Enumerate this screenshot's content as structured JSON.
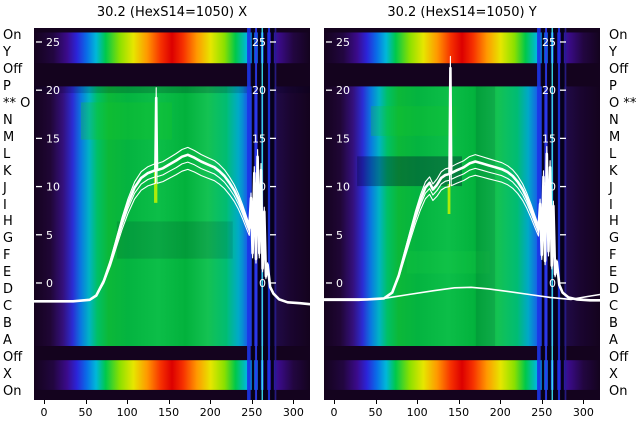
{
  "palette": {
    "dark": "#14031e",
    "rainbow": [
      [
        "0%",
        "#14031e"
      ],
      [
        "7%",
        "#220640"
      ],
      [
        "12%",
        "#3b0b8c"
      ],
      [
        "15.5%",
        "#2b24d8"
      ],
      [
        "19%",
        "#0a6ce8"
      ],
      [
        "22.5%",
        "#00b8d8"
      ],
      [
        "26%",
        "#00c84a"
      ],
      [
        "31%",
        "#8ae000"
      ],
      [
        "36%",
        "#e6e600"
      ],
      [
        "41%",
        "#ff9800"
      ],
      [
        "46%",
        "#f63000"
      ],
      [
        "50%",
        "#dc0000"
      ],
      [
        "54%",
        "#f63000"
      ],
      [
        "59%",
        "#ff9800"
      ],
      [
        "64%",
        "#e6e600"
      ],
      [
        "69%",
        "#8ae000"
      ],
      [
        "73%",
        "#00c84a"
      ],
      [
        "77%",
        "#00b8d8"
      ],
      [
        "80.5%",
        "#0a6ce8"
      ],
      [
        "84%",
        "#2b24d8"
      ],
      [
        "88.5%",
        "#3b0b8c"
      ],
      [
        "94%",
        "#220640"
      ],
      [
        "100%",
        "#14031e"
      ]
    ],
    "body": [
      [
        "0%",
        "#14031e"
      ],
      [
        "6%",
        "#200636"
      ],
      [
        "10.5%",
        "#34107c"
      ],
      [
        "14%",
        "#2b2cd4"
      ],
      [
        "17%",
        "#0a78e0"
      ],
      [
        "20%",
        "#00b4c4"
      ],
      [
        "23%",
        "#00c064"
      ],
      [
        "27%",
        "#0cb838"
      ],
      [
        "34%",
        "#04b440"
      ],
      [
        "45%",
        "#0cbe48"
      ],
      [
        "55%",
        "#02b23c"
      ],
      [
        "63%",
        "#14c252"
      ],
      [
        "70%",
        "#00bc74"
      ],
      [
        "74%",
        "#00a8c8"
      ],
      [
        "77%",
        "#1468e4"
      ],
      [
        "79.5%",
        "#2b2cd4"
      ],
      [
        "82%",
        "#1a1070"
      ],
      [
        "85%",
        "#0a0634"
      ],
      [
        "88%",
        "#200a46"
      ],
      [
        "93%",
        "#1a0530"
      ],
      [
        "100%",
        "#14031e"
      ]
    ],
    "curve": "#ffffff",
    "tick_text": "#ffffff"
  },
  "row_labels": [
    "On",
    "Y",
    "Off",
    "P",
    "O",
    "N",
    "M",
    "L",
    "K",
    "J",
    "I",
    "H",
    "G",
    "F",
    "E",
    "D",
    "C",
    "B",
    "A",
    "Off",
    "X",
    "On"
  ],
  "starred_row": 4,
  "star_text": "**",
  "y_tick_labels": [
    "25",
    "20",
    "15",
    "10",
    "5",
    "0"
  ],
  "y_tick_values": [
    25,
    20,
    15,
    10,
    5,
    0
  ],
  "x_tick_labels": [
    "0",
    "50",
    "100",
    "150",
    "200",
    "250",
    "300"
  ],
  "x_tick_values": [
    0,
    50,
    100,
    150,
    200,
    250,
    300
  ],
  "chart_data": [
    {
      "type": "heatmap+line",
      "title": "30.2 (HexS14=1050) X",
      "x_range": [
        -12,
        320
      ],
      "y_range": [
        -12.14,
        26.45
      ],
      "x_ticks": [
        0,
        50,
        100,
        150,
        200,
        250,
        300
      ],
      "y_ticks": [
        25,
        20,
        15,
        10,
        5,
        0
      ],
      "row_labels": [
        "On",
        "Y",
        "Off",
        "P",
        "O",
        "N",
        "M",
        "L",
        "K",
        "J",
        "I",
        "H",
        "G",
        "F",
        "E",
        "D",
        "C",
        "B",
        "A",
        "Off",
        "X",
        "On"
      ],
      "baseline": -1.9,
      "bands": [
        {
          "from": 0.0,
          "to": 0.012,
          "style": "dark"
        },
        {
          "from": 0.012,
          "to": 0.095,
          "style": "rainbow"
        },
        {
          "from": 0.095,
          "to": 0.157,
          "style": "dark"
        },
        {
          "from": 0.157,
          "to": 0.855,
          "style": "body"
        },
        {
          "from": 0.855,
          "to": 0.893,
          "style": "dark"
        },
        {
          "from": 0.893,
          "to": 0.973,
          "style": "rainbow"
        },
        {
          "from": 0.973,
          "to": 1.0,
          "style": "dark"
        }
      ],
      "overlays": [
        {
          "x0": 0.17,
          "x1": 0.5,
          "y0": 0.2,
          "y1": 0.3,
          "color": "#18c828",
          "opacity": 0.3
        },
        {
          "x0": 0.3,
          "x1": 0.72,
          "y0": 0.52,
          "y1": 0.62,
          "color": "#000028",
          "opacity": 0.12
        },
        {
          "x0": 0.435,
          "x1": 0.447,
          "y0": 0.36,
          "y1": 0.47,
          "color": "#c8f400",
          "opacity": 0.85
        },
        {
          "x0": 0.0,
          "x1": 1.0,
          "y0": 0.157,
          "y1": 0.175,
          "color": "#000020",
          "opacity": 0.18
        },
        {
          "x0": 0.7,
          "x1": 0.76,
          "y0": 0.157,
          "y1": 0.855,
          "color": "#00c8c0",
          "opacity": 0.1
        }
      ],
      "stripes": [
        {
          "x": 0.772,
          "w": 0.013,
          "color": "#1b35e8",
          "opacity": 0.9
        },
        {
          "x": 0.789,
          "w": 0.009,
          "color": "#05021a",
          "opacity": 1
        },
        {
          "x": 0.801,
          "w": 0.007,
          "color": "#2a3cf0",
          "opacity": 0.9
        },
        {
          "x": 0.811,
          "w": 0.011,
          "color": "#05021a",
          "opacity": 1
        },
        {
          "x": 0.8245,
          "w": 0.005,
          "color": "#39e8f2",
          "opacity": 0.95
        },
        {
          "x": 0.832,
          "w": 0.013,
          "color": "#05021a",
          "opacity": 1
        },
        {
          "x": 0.848,
          "w": 0.007,
          "color": "#1b35e8",
          "opacity": 0.9
        },
        {
          "x": 0.858,
          "w": 0.011,
          "color": "#05021a",
          "opacity": 1
        },
        {
          "x": 0.872,
          "w": 0.006,
          "color": "#261e8c",
          "opacity": 0.9
        }
      ],
      "series": [
        {
          "name": "profile-bundle",
          "width": 2.6,
          "bundle": [
            1,
            0.95,
            1.05,
            0.9
          ],
          "points": [
            [
              -12,
              -1.9
            ],
            [
              35,
              -1.9
            ],
            [
              55,
              -1.75
            ],
            [
              63,
              -1.3
            ],
            [
              72,
              0.2
            ],
            [
              80,
              2.2
            ],
            [
              87,
              4.3
            ],
            [
              94,
              6.4
            ],
            [
              101,
              8.2
            ],
            [
              109,
              9.9
            ],
            [
              117,
              10.9
            ],
            [
              125,
              11.4
            ],
            [
              131,
              11.6
            ],
            [
              134,
              11.7
            ],
            [
              135,
              19.2
            ],
            [
              136,
              11.7
            ],
            [
              143,
              11.9
            ],
            [
              151,
              12.3
            ],
            [
              159,
              12.7
            ],
            [
              166,
              13.1
            ],
            [
              173,
              13.3
            ],
            [
              181,
              13.0
            ],
            [
              189,
              12.6
            ],
            [
              197,
              12.3
            ],
            [
              205,
              12.0
            ],
            [
              211,
              11.6
            ],
            [
              217,
              11.1
            ],
            [
              223,
              10.4
            ],
            [
              229,
              9.6
            ],
            [
              234,
              8.7
            ],
            [
              239,
              7.6
            ],
            [
              244,
              6.4
            ],
            [
              247,
              5.7
            ],
            [
              249,
              8.8
            ],
            [
              251,
              3.1
            ],
            [
              253,
              11.4
            ],
            [
              255,
              2.5
            ],
            [
              257,
              13.1
            ],
            [
              259,
              3.1
            ],
            [
              261,
              11.7
            ],
            [
              263,
              1.5
            ],
            [
              265,
              7.4
            ],
            [
              267,
              0.7
            ],
            [
              269,
              1.9
            ],
            [
              272,
              -0.4
            ],
            [
              276,
              -1.1
            ],
            [
              283,
              -1.7
            ],
            [
              293,
              -2.0
            ],
            [
              308,
              -2.1
            ],
            [
              320,
              -2.2
            ]
          ]
        }
      ]
    },
    {
      "type": "heatmap+line",
      "title": "30.2 (HexS14=1050) Y",
      "x_range": [
        -12,
        320
      ],
      "y_range": [
        -12.14,
        26.45
      ],
      "x_ticks": [
        0,
        50,
        100,
        150,
        200,
        250,
        300
      ],
      "y_ticks": [
        25,
        20,
        15,
        10,
        5,
        0
      ],
      "row_labels": [
        "On",
        "Y",
        "Off",
        "P",
        "O",
        "N",
        "M",
        "L",
        "K",
        "J",
        "I",
        "H",
        "G",
        "F",
        "E",
        "D",
        "C",
        "B",
        "A",
        "Off",
        "X",
        "On"
      ],
      "baseline": -1.7,
      "bands": [
        {
          "from": 0.0,
          "to": 0.012,
          "style": "dark"
        },
        {
          "from": 0.012,
          "to": 0.095,
          "style": "rainbow"
        },
        {
          "from": 0.095,
          "to": 0.157,
          "style": "dark"
        },
        {
          "from": 0.157,
          "to": 0.855,
          "style": "body"
        },
        {
          "from": 0.855,
          "to": 0.893,
          "style": "dark"
        },
        {
          "from": 0.893,
          "to": 0.973,
          "style": "rainbow"
        },
        {
          "from": 0.973,
          "to": 1.0,
          "style": "dark"
        }
      ],
      "overlays": [
        {
          "x0": 0.12,
          "x1": 0.5,
          "y0": 0.345,
          "y1": 0.425,
          "color": "#000030",
          "opacity": 0.32
        },
        {
          "x0": 0.17,
          "x1": 0.48,
          "y0": 0.21,
          "y1": 0.29,
          "color": "#18c828",
          "opacity": 0.25
        },
        {
          "x0": 0.448,
          "x1": 0.458,
          "y0": 0.42,
          "y1": 0.5,
          "color": "#c8f400",
          "opacity": 0.85
        },
        {
          "x0": 0.3,
          "x1": 0.6,
          "y0": 0.6,
          "y1": 0.66,
          "color": "#20d040",
          "opacity": 0.18
        },
        {
          "x0": 0.55,
          "x1": 0.62,
          "y0": 0.157,
          "y1": 0.855,
          "color": "#000020",
          "opacity": 0.1
        }
      ],
      "stripes": [
        {
          "x": 0.772,
          "w": 0.013,
          "color": "#1b35e8",
          "opacity": 0.9
        },
        {
          "x": 0.789,
          "w": 0.009,
          "color": "#05021a",
          "opacity": 1
        },
        {
          "x": 0.801,
          "w": 0.007,
          "color": "#2a3cf0",
          "opacity": 0.9
        },
        {
          "x": 0.811,
          "w": 0.011,
          "color": "#05021a",
          "opacity": 1
        },
        {
          "x": 0.8245,
          "w": 0.005,
          "color": "#39e8f2",
          "opacity": 0.95
        },
        {
          "x": 0.832,
          "w": 0.013,
          "color": "#05021a",
          "opacity": 1
        },
        {
          "x": 0.848,
          "w": 0.007,
          "color": "#1b35e8",
          "opacity": 0.9
        },
        {
          "x": 0.858,
          "w": 0.011,
          "color": "#05021a",
          "opacity": 1
        },
        {
          "x": 0.872,
          "w": 0.006,
          "color": "#261e8c",
          "opacity": 0.9
        }
      ],
      "series": [
        {
          "name": "profile-bundle",
          "width": 2.6,
          "bundle": [
            1,
            0.95,
            1.05,
            0.9
          ],
          "points": [
            [
              -12,
              -1.7
            ],
            [
              40,
              -1.7
            ],
            [
              60,
              -1.6
            ],
            [
              70,
              -1.0
            ],
            [
              78,
              0.8
            ],
            [
              85,
              3.0
            ],
            [
              92,
              5.2
            ],
            [
              98,
              7.0
            ],
            [
              104,
              8.6
            ],
            [
              110,
              9.9
            ],
            [
              115,
              10.4
            ],
            [
              119,
              9.7
            ],
            [
              124,
              10.2
            ],
            [
              129,
              10.9
            ],
            [
              134,
              11.2
            ],
            [
              139,
              11.3
            ],
            [
              140,
              22.3
            ],
            [
              141,
              11.4
            ],
            [
              148,
              11.7
            ],
            [
              156,
              12.0
            ],
            [
              163,
              12.4
            ],
            [
              170,
              12.6
            ],
            [
              178,
              12.4
            ],
            [
              186,
              12.2
            ],
            [
              194,
              12.0
            ],
            [
              202,
              11.8
            ],
            [
              209,
              11.5
            ],
            [
              215,
              11.1
            ],
            [
              221,
              10.5
            ],
            [
              227,
              9.7
            ],
            [
              232,
              8.8
            ],
            [
              237,
              7.7
            ],
            [
              242,
              6.5
            ],
            [
              246,
              5.6
            ],
            [
              248,
              8.2
            ],
            [
              250,
              2.9
            ],
            [
              252,
              11.0
            ],
            [
              254,
              2.3
            ],
            [
              256,
              13.4
            ],
            [
              258,
              3.3
            ],
            [
              260,
              12.0
            ],
            [
              262,
              1.8
            ],
            [
              264,
              8.0
            ],
            [
              266,
              0.9
            ],
            [
              268,
              2.2
            ],
            [
              271,
              -0.2
            ],
            [
              275,
              -1.0
            ],
            [
              282,
              -1.5
            ],
            [
              292,
              -1.7
            ],
            [
              308,
              -1.8
            ],
            [
              320,
              -1.8
            ]
          ]
        },
        {
          "name": "profile-secondary",
          "width": 1.6,
          "bundle": [
            1
          ],
          "points": [
            [
              -12,
              -1.8
            ],
            [
              30,
              -1.8
            ],
            [
              60,
              -1.6
            ],
            [
              90,
              -1.2
            ],
            [
              120,
              -0.8
            ],
            [
              145,
              -0.5
            ],
            [
              165,
              -0.45
            ],
            [
              185,
              -0.6
            ],
            [
              210,
              -0.9
            ],
            [
              235,
              -1.2
            ],
            [
              260,
              -1.5
            ],
            [
              285,
              -1.7
            ],
            [
              305,
              -1.4
            ],
            [
              320,
              -1.2
            ]
          ]
        }
      ]
    }
  ]
}
